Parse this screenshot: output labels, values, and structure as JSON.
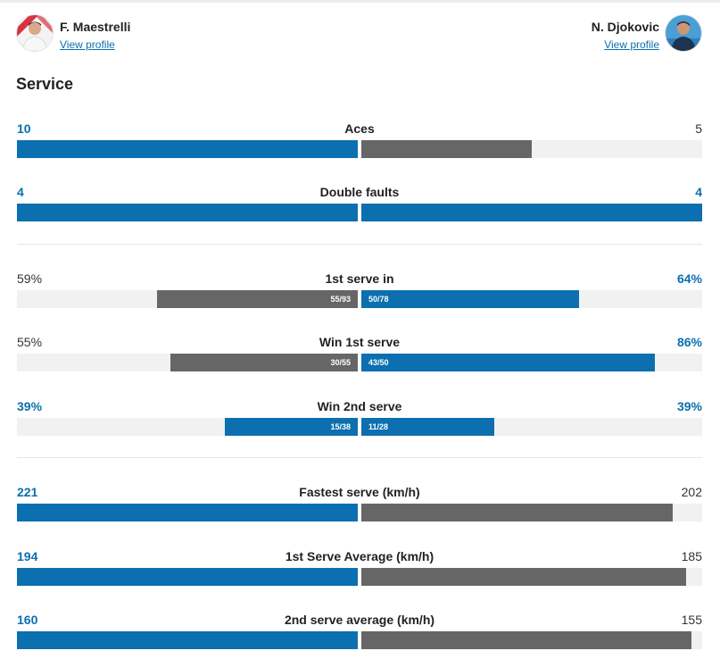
{
  "players": {
    "left": {
      "name": "F. Maestrelli",
      "link": "View profile"
    },
    "right": {
      "name": "N. Djokovic",
      "link": "View profile"
    }
  },
  "section_title": "Service",
  "colors": {
    "highlight": "#0b6fb0",
    "neutral": "#666666",
    "track": "#f1f1f1"
  },
  "stats": [
    {
      "label": "Aces",
      "left": "10",
      "right": "5",
      "left_pct": 100,
      "right_pct": 50,
      "left_color": "blue",
      "right_color": "gray",
      "left_hi": true,
      "right_hi": false,
      "left_count": "",
      "right_count": ""
    },
    {
      "label": "Double faults",
      "left": "4",
      "right": "4",
      "left_pct": 100,
      "right_pct": 100,
      "left_color": "blue",
      "right_color": "blue",
      "left_hi": true,
      "right_hi": true,
      "left_count": "",
      "right_count": ""
    },
    {
      "label": "1st serve in",
      "left": "59%",
      "right": "64%",
      "left_pct": 59,
      "right_pct": 64,
      "left_color": "gray",
      "right_color": "blue",
      "left_hi": false,
      "right_hi": true,
      "left_count": "55/93",
      "right_count": "50/78"
    },
    {
      "label": "Win 1st serve",
      "left": "55%",
      "right": "86%",
      "left_pct": 55,
      "right_pct": 86,
      "left_color": "gray",
      "right_color": "blue",
      "left_hi": false,
      "right_hi": true,
      "left_count": "30/55",
      "right_count": "43/50"
    },
    {
      "label": "Win 2nd serve",
      "left": "39%",
      "right": "39%",
      "left_pct": 39,
      "right_pct": 39,
      "left_color": "blue",
      "right_color": "blue",
      "left_hi": true,
      "right_hi": true,
      "left_count": "15/38",
      "right_count": "11/28"
    },
    {
      "label": "Fastest serve (km/h)",
      "left": "221",
      "right": "202",
      "left_pct": 100,
      "right_pct": 91.4,
      "left_color": "blue",
      "right_color": "gray",
      "left_hi": true,
      "right_hi": false,
      "left_count": "",
      "right_count": ""
    },
    {
      "label": "1st Serve Average (km/h)",
      "left": "194",
      "right": "185",
      "left_pct": 100,
      "right_pct": 95.4,
      "left_color": "blue",
      "right_color": "gray",
      "left_hi": true,
      "right_hi": false,
      "left_count": "",
      "right_count": ""
    },
    {
      "label": "2nd serve average (km/h)",
      "left": "160",
      "right": "155",
      "left_pct": 100,
      "right_pct": 96.9,
      "left_color": "blue",
      "right_color": "gray",
      "left_hi": true,
      "right_hi": false,
      "left_count": "",
      "right_count": ""
    }
  ]
}
